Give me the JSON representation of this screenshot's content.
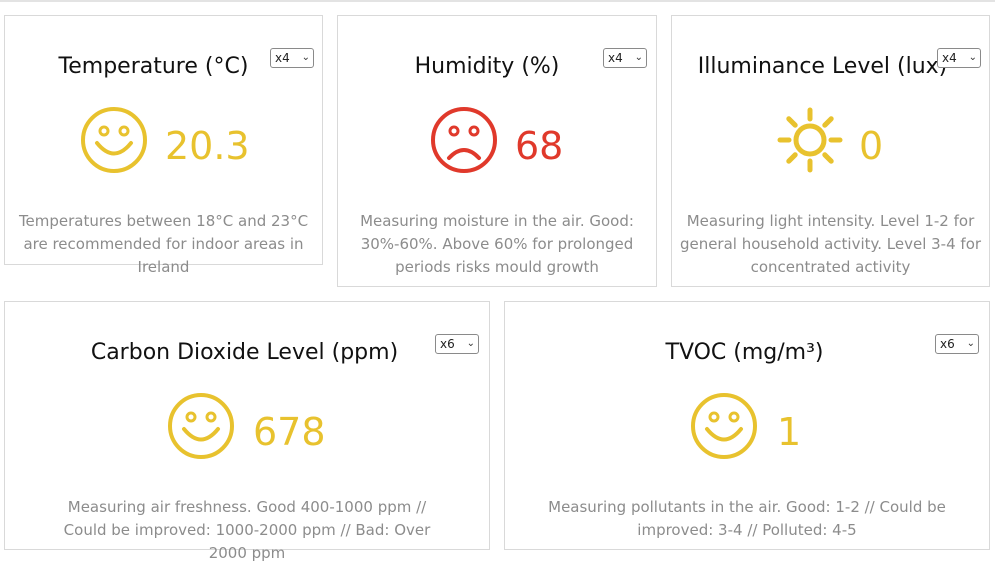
{
  "colors": {
    "good": "#e8c22e",
    "bad": "#e0392b"
  },
  "cards": [
    {
      "title": "Temperature (°C)",
      "selector": "x4",
      "icon": "smiley-face-icon",
      "value": "20.3",
      "description": "Temperatures between 18°C and 23°C are recommended for indoor areas in Ireland"
    },
    {
      "title": "Humidity (%)",
      "selector": "x4",
      "icon": "sad-face-icon",
      "value": "68",
      "description": "Measuring moisture in the air. Good: 30%-60%. Above 60% for prolonged periods risks mould growth"
    },
    {
      "title": "Illuminance Level (lux)",
      "selector": "x4",
      "icon": "sun-icon",
      "value": "0",
      "description": "Measuring light intensity. Level 1-2 for general household activity. Level 3-4 for concentrated activity"
    },
    {
      "title": "Carbon Dioxide Level (ppm)",
      "selector": "x6",
      "icon": "smiley-face-icon",
      "value": "678",
      "description": "Measuring air freshness. Good 400-1000 ppm // Could be improved: 1000-2000 ppm // Bad: Over 2000 ppm"
    },
    {
      "title": "TVOC (mg/m³)",
      "selector": "x6",
      "icon": "smiley-face-icon",
      "value": "1",
      "description": "Measuring pollutants in the air. Good: 1-2 // Could be improved: 3-4 // Polluted: 4-5"
    }
  ]
}
